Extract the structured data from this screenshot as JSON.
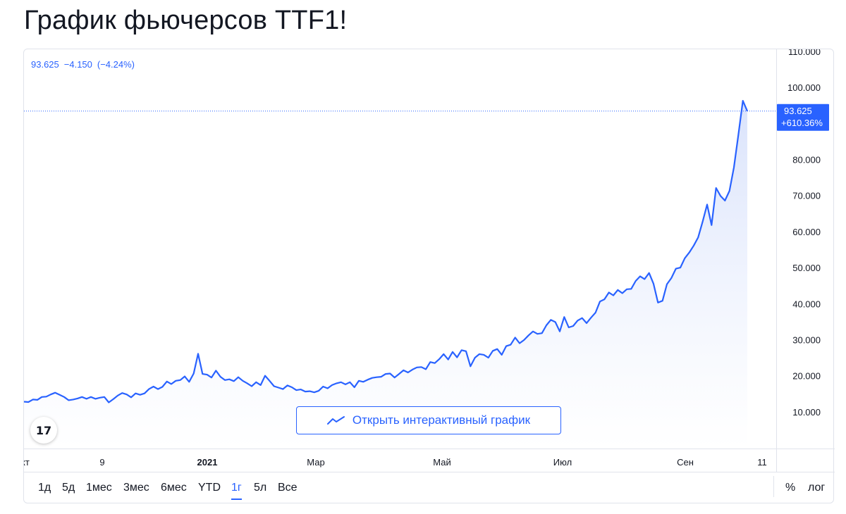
{
  "page": {
    "title": "График фьючерсов TTF1!"
  },
  "legend": {
    "price": "93.625",
    "change": "−4.150",
    "change_pct": "(−4.24%)"
  },
  "price_label": {
    "price": "93.625",
    "pct": "+610.36%"
  },
  "interactive_button": {
    "label": "Открыть интерактивный график",
    "icon": "line-chart-icon"
  },
  "logo": {
    "text": "17"
  },
  "periods": [
    {
      "label": "1д",
      "active": false
    },
    {
      "label": "5д",
      "active": false
    },
    {
      "label": "1мес",
      "active": false
    },
    {
      "label": "3мес",
      "active": false
    },
    {
      "label": "6мес",
      "active": false
    },
    {
      "label": "YTD",
      "active": false
    },
    {
      "label": "1г",
      "active": true
    },
    {
      "label": "5л",
      "active": false
    },
    {
      "label": "Все",
      "active": false
    }
  ],
  "tools": {
    "percent": "%",
    "log": "лог"
  },
  "colors": {
    "line": "#2962ff",
    "fill_top": "#d6e0fb",
    "fill_bottom": "#ffffff",
    "axis_text": "#131722",
    "border": "#e0e3eb"
  },
  "chart_data": {
    "type": "area",
    "title": "График фьючерсов TTF1!",
    "xlabel": "",
    "ylabel": "",
    "ylim": [
      0,
      110
    ],
    "yticks": [
      "110.000",
      "100.000",
      "80.000",
      "70.000",
      "60.000",
      "50.000",
      "40.000",
      "30.000",
      "20.000",
      "10.000"
    ],
    "ytick_values": [
      110,
      100,
      80,
      70,
      60,
      50,
      40,
      30,
      20,
      10
    ],
    "xticks": [
      "кт",
      "9",
      "2021",
      "Мар",
      "Май",
      "Июл",
      "Сен",
      "11"
    ],
    "xtick_bold": [
      "2021"
    ],
    "grid": false,
    "last_value": 93.625,
    "series": [
      {
        "values": [
          13.0,
          12.9,
          13.6,
          13.5,
          14.3,
          14.4,
          15.0,
          15.5,
          14.9,
          14.3,
          13.4,
          13.6,
          13.9,
          14.3,
          13.8,
          14.3,
          13.8,
          14.1,
          14.3,
          12.8,
          13.7,
          14.7,
          15.4,
          15.0,
          14.2,
          15.3,
          14.9,
          15.3,
          16.5,
          17.2,
          16.5,
          17.1,
          18.6,
          17.9,
          18.8,
          19.0,
          20.0,
          18.5,
          20.8,
          26.3,
          20.7,
          20.5,
          19.7,
          21.6,
          19.9,
          19.0,
          19.2,
          18.7,
          19.8,
          18.8,
          18.1,
          17.3,
          18.4,
          17.6,
          20.2,
          18.8,
          17.3,
          16.9,
          16.5,
          17.5,
          17.0,
          16.2,
          16.4,
          15.8,
          15.9,
          15.6,
          16.0,
          17.2,
          16.7,
          17.6,
          18.1,
          18.4,
          17.8,
          18.4,
          17.0,
          18.8,
          18.5,
          19.1,
          19.6,
          19.8,
          19.9,
          20.7,
          20.8,
          19.7,
          20.7,
          21.7,
          21.1,
          21.9,
          22.5,
          22.6,
          22.0,
          24.0,
          23.7,
          24.8,
          26.2,
          24.7,
          26.8,
          25.3,
          27.3,
          27.0,
          22.8,
          25.2,
          26.2,
          26.0,
          25.2,
          27.1,
          27.6,
          26.0,
          28.4,
          28.8,
          30.8,
          29.2,
          30.1,
          31.4,
          32.5,
          31.8,
          32.0,
          34.2,
          35.7,
          35.1,
          32.5,
          36.5,
          33.6,
          34.0,
          35.5,
          36.2,
          34.8,
          36.3,
          37.7,
          40.8,
          41.4,
          43.3,
          42.5,
          44.0,
          43.1,
          44.2,
          44.3,
          46.5,
          47.8,
          47.0,
          48.7,
          45.7,
          40.5,
          41.0,
          45.6,
          47.3,
          49.9,
          50.2,
          52.8,
          54.4,
          56.3,
          58.6,
          63.0,
          67.7,
          62.0,
          72.3,
          70.1,
          68.8,
          71.5,
          78.0,
          87.0,
          96.5,
          93.625
        ]
      }
    ]
  }
}
